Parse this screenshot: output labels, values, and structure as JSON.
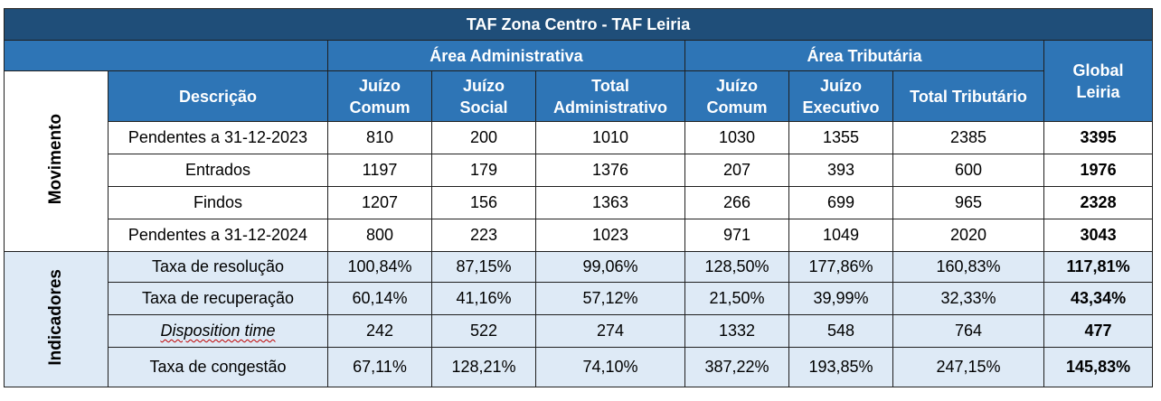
{
  "title": "TAF Zona Centro - TAF Leiria",
  "areas": {
    "administrativa": "Área Administrativa",
    "tributaria": "Área Tributária",
    "global": "Global Leiria"
  },
  "columns": {
    "descricao": "Descrição",
    "juizo_comum_adm": "Juízo Comum",
    "juizo_social": "Juízo Social",
    "total_adm": "Total Administrativo",
    "juizo_comum_trib": "Juízo Comum",
    "juizo_executivo": "Juízo Executivo",
    "total_trib": "Total Tributário"
  },
  "sections": {
    "movimento": "Movimento",
    "indicadores": "Indicadores"
  },
  "movimento_rows": [
    {
      "label": "Pendentes a 31-12-2023",
      "v": [
        "810",
        "200",
        "1010",
        "1030",
        "1355",
        "2385",
        "3395"
      ]
    },
    {
      "label": "Entrados",
      "v": [
        "1197",
        "179",
        "1376",
        "207",
        "393",
        "600",
        "1976"
      ]
    },
    {
      "label": "Findos",
      "v": [
        "1207",
        "156",
        "1363",
        "266",
        "699",
        "965",
        "2328"
      ]
    },
    {
      "label": "Pendentes a 31-12-2024",
      "v": [
        "800",
        "223",
        "1023",
        "971",
        "1049",
        "2020",
        "3043"
      ]
    }
  ],
  "indicadores_rows": [
    {
      "label": "Taxa de resolução",
      "v": [
        "100,84%",
        "87,15%",
        "99,06%",
        "128,50%",
        "177,86%",
        "160,83%",
        "117,81%"
      ]
    },
    {
      "label": "Taxa de recuperação",
      "v": [
        "60,14%",
        "41,16%",
        "57,12%",
        "21,50%",
        "39,99%",
        "32,33%",
        "43,34%"
      ]
    },
    {
      "label": "Disposition time",
      "v": [
        "242",
        "522",
        "274",
        "1332",
        "548",
        "764",
        "477"
      ]
    },
    {
      "label": "Taxa de congestão",
      "v": [
        "67,11%",
        "128,21%",
        "74,10%",
        "387,22%",
        "193,85%",
        "247,15%",
        "145,83%"
      ]
    }
  ],
  "colors": {
    "title_bg": "#1f4e79",
    "header_bg": "#2e75b6",
    "indicadores_bg": "#deeaf6"
  }
}
